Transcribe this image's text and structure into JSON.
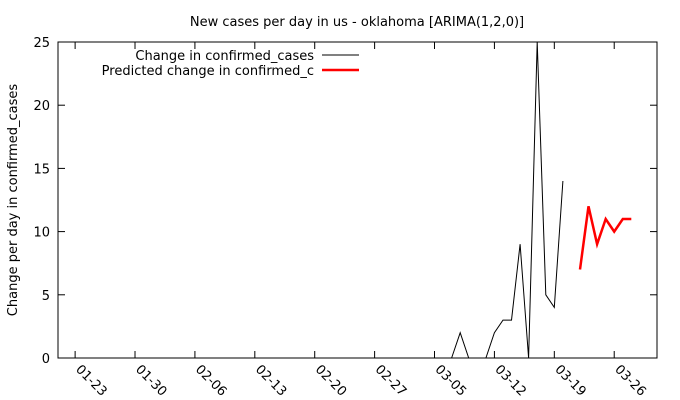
{
  "chart_data": {
    "type": "line",
    "title": "New cases per day in us - oklahoma [ARIMA(1,2,0)]",
    "xlabel": "",
    "ylabel": "Change per day in confirmed_cases",
    "ylim": [
      0,
      25
    ],
    "yticks": [
      0,
      5,
      10,
      15,
      20,
      25
    ],
    "xlim": [
      "2020-01-21",
      "2020-03-31"
    ],
    "xticks": [
      "01-23",
      "01-30",
      "02-06",
      "02-13",
      "02-20",
      "02-27",
      "03-05",
      "03-12",
      "03-19",
      "03-26"
    ],
    "xtick_dates": [
      "2020-01-23",
      "2020-01-30",
      "2020-02-06",
      "2020-02-13",
      "2020-02-20",
      "2020-02-27",
      "2020-03-05",
      "2020-03-12",
      "2020-03-19",
      "2020-03-26"
    ],
    "grid": false,
    "legend_position": "top-left",
    "series": [
      {
        "name": "Change in confirmed_cases",
        "color": "#000000",
        "x": [
          "2020-03-07",
          "2020-03-08",
          "2020-03-09",
          "2020-03-10",
          "2020-03-11",
          "2020-03-12",
          "2020-03-13",
          "2020-03-14",
          "2020-03-15",
          "2020-03-16",
          "2020-03-17",
          "2020-03-18",
          "2020-03-19",
          "2020-03-20",
          "2020-03-21"
        ],
        "values": [
          0,
          2,
          0,
          0,
          0,
          2,
          3,
          3,
          9,
          0,
          25,
          5,
          4,
          14,
          null
        ]
      },
      {
        "name": "Predicted change in confirmed_c",
        "color": "#ff0000",
        "x": [
          "2020-03-22",
          "2020-03-23",
          "2020-03-24",
          "2020-03-25",
          "2020-03-26",
          "2020-03-27",
          "2020-03-28"
        ],
        "values": [
          7,
          12,
          9,
          11,
          10,
          11,
          11
        ]
      }
    ]
  }
}
